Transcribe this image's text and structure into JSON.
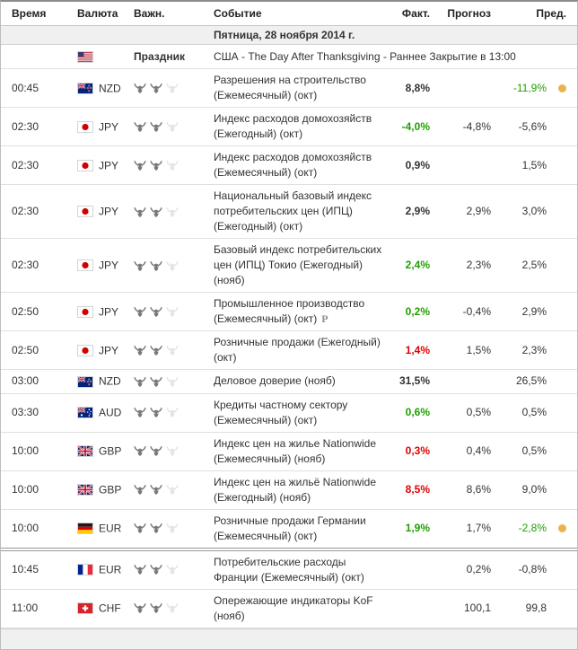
{
  "header": {
    "time": "Время",
    "currency": "Валюта",
    "importance": "Важн.",
    "event": "Событие",
    "actual": "Факт.",
    "forecast": "Прогноз",
    "previous": "Пред."
  },
  "date_header": "Пятница, 28 ноября 2014 г.",
  "holiday": {
    "flag": "us",
    "label": "Праздник",
    "text": "США - The Day After Thanksgiving - Раннее Закрытие в 13:00"
  },
  "icons": {
    "preliminary_label": "P"
  },
  "colors": {
    "positive": "#1fa000",
    "negative": "#e00000",
    "neutral": "#333333",
    "dot": "#e9b44c",
    "bull_active": "#787878",
    "bull_inactive": "#e4e4e4"
  },
  "rows": [
    {
      "time": "00:45",
      "currency": "NZD",
      "flag": "nz",
      "importance": 2,
      "importance_max": 3,
      "event": "Разрешения на строительство (Ежемесячный) (окт)",
      "preliminary": false,
      "actual": "8,8%",
      "actual_style": "neutral",
      "forecast": "",
      "previous": "-11,9%",
      "previous_style": "positive",
      "dot": true,
      "separator": false
    },
    {
      "time": "02:30",
      "currency": "JPY",
      "flag": "jp",
      "importance": 2,
      "importance_max": 3,
      "event": "Индекс расходов домохозяйств (Ежегодный) (окт)",
      "preliminary": false,
      "actual": "-4,0%",
      "actual_style": "positive",
      "forecast": "-4,8%",
      "previous": "-5,6%",
      "previous_style": "default",
      "dot": false,
      "separator": false
    },
    {
      "time": "02:30",
      "currency": "JPY",
      "flag": "jp",
      "importance": 2,
      "importance_max": 3,
      "event": "Индекс расходов домохозяйств (Ежемесячный) (окт)",
      "preliminary": false,
      "actual": "0,9%",
      "actual_style": "neutral",
      "forecast": "",
      "previous": "1,5%",
      "previous_style": "default",
      "dot": false,
      "separator": false
    },
    {
      "time": "02:30",
      "currency": "JPY",
      "flag": "jp",
      "importance": 2,
      "importance_max": 3,
      "event": "Национальный базовый индекс потребительских цен (ИПЦ) (Ежегодный) (окт)",
      "preliminary": false,
      "actual": "2,9%",
      "actual_style": "neutral",
      "forecast": "2,9%",
      "previous": "3,0%",
      "previous_style": "default",
      "dot": false,
      "separator": false
    },
    {
      "time": "02:30",
      "currency": "JPY",
      "flag": "jp",
      "importance": 2,
      "importance_max": 3,
      "event": "Базовый индекс потребительских цен (ИПЦ) Токио (Ежегодный) (нояб)",
      "preliminary": false,
      "actual": "2,4%",
      "actual_style": "positive",
      "forecast": "2,3%",
      "previous": "2,5%",
      "previous_style": "default",
      "dot": false,
      "separator": false
    },
    {
      "time": "02:50",
      "currency": "JPY",
      "flag": "jp",
      "importance": 2,
      "importance_max": 3,
      "event": "Промышленное производство (Ежемесячный) (окт)",
      "preliminary": true,
      "actual": "0,2%",
      "actual_style": "positive",
      "forecast": "-0,4%",
      "previous": "2,9%",
      "previous_style": "default",
      "dot": false,
      "separator": false
    },
    {
      "time": "02:50",
      "currency": "JPY",
      "flag": "jp",
      "importance": 2,
      "importance_max": 3,
      "event": "Розничные продажи (Ежегодный) (окт)",
      "preliminary": false,
      "actual": "1,4%",
      "actual_style": "negative",
      "forecast": "1,5%",
      "previous": "2,3%",
      "previous_style": "default",
      "dot": false,
      "separator": false
    },
    {
      "time": "03:00",
      "currency": "NZD",
      "flag": "nz",
      "importance": 2,
      "importance_max": 3,
      "event": "Деловое доверие (нояб)",
      "preliminary": false,
      "actual": "31,5%",
      "actual_style": "neutral",
      "forecast": "",
      "previous": "26,5%",
      "previous_style": "default",
      "dot": false,
      "separator": false
    },
    {
      "time": "03:30",
      "currency": "AUD",
      "flag": "au",
      "importance": 2,
      "importance_max": 3,
      "event": "Кредиты частному сектору (Ежемесячный) (окт)",
      "preliminary": false,
      "actual": "0,6%",
      "actual_style": "positive",
      "forecast": "0,5%",
      "previous": "0,5%",
      "previous_style": "default",
      "dot": false,
      "separator": false
    },
    {
      "time": "10:00",
      "currency": "GBP",
      "flag": "gb",
      "importance": 2,
      "importance_max": 3,
      "event": "Индекс цен на жилье Nationwide (Ежемесячный) (нояб)",
      "preliminary": false,
      "actual": "0,3%",
      "actual_style": "negative",
      "forecast": "0,4%",
      "previous": "0,5%",
      "previous_style": "default",
      "dot": false,
      "separator": false
    },
    {
      "time": "10:00",
      "currency": "GBP",
      "flag": "gb",
      "importance": 2,
      "importance_max": 3,
      "event": "Индекс цен на жильё Nationwide (Ежегодный) (нояб)",
      "preliminary": false,
      "actual": "8,5%",
      "actual_style": "negative",
      "forecast": "8,6%",
      "previous": "9,0%",
      "previous_style": "default",
      "dot": false,
      "separator": false
    },
    {
      "time": "10:00",
      "currency": "EUR",
      "flag": "de",
      "importance": 2,
      "importance_max": 3,
      "event": "Розничные продажи Германии (Ежемесячный) (окт)",
      "preliminary": false,
      "actual": "1,9%",
      "actual_style": "positive",
      "forecast": "1,7%",
      "previous": "-2,8%",
      "previous_style": "positive",
      "dot": true,
      "separator": false
    },
    {
      "time": "10:45",
      "currency": "EUR",
      "flag": "fr",
      "importance": 2,
      "importance_max": 3,
      "event": "Потребительские расходы Франции (Ежемесячный) (окт)",
      "preliminary": false,
      "actual": "",
      "actual_style": "neutral",
      "forecast": "0,2%",
      "previous": "-0,8%",
      "previous_style": "default",
      "dot": false,
      "separator": true
    },
    {
      "time": "11:00",
      "currency": "CHF",
      "flag": "ch",
      "importance": 2,
      "importance_max": 3,
      "event": "Опережающие индикаторы KoF (нояб)",
      "preliminary": false,
      "actual": "",
      "actual_style": "neutral",
      "forecast": "100,1",
      "previous": "99,8",
      "previous_style": "default",
      "dot": false,
      "separator": false
    }
  ]
}
